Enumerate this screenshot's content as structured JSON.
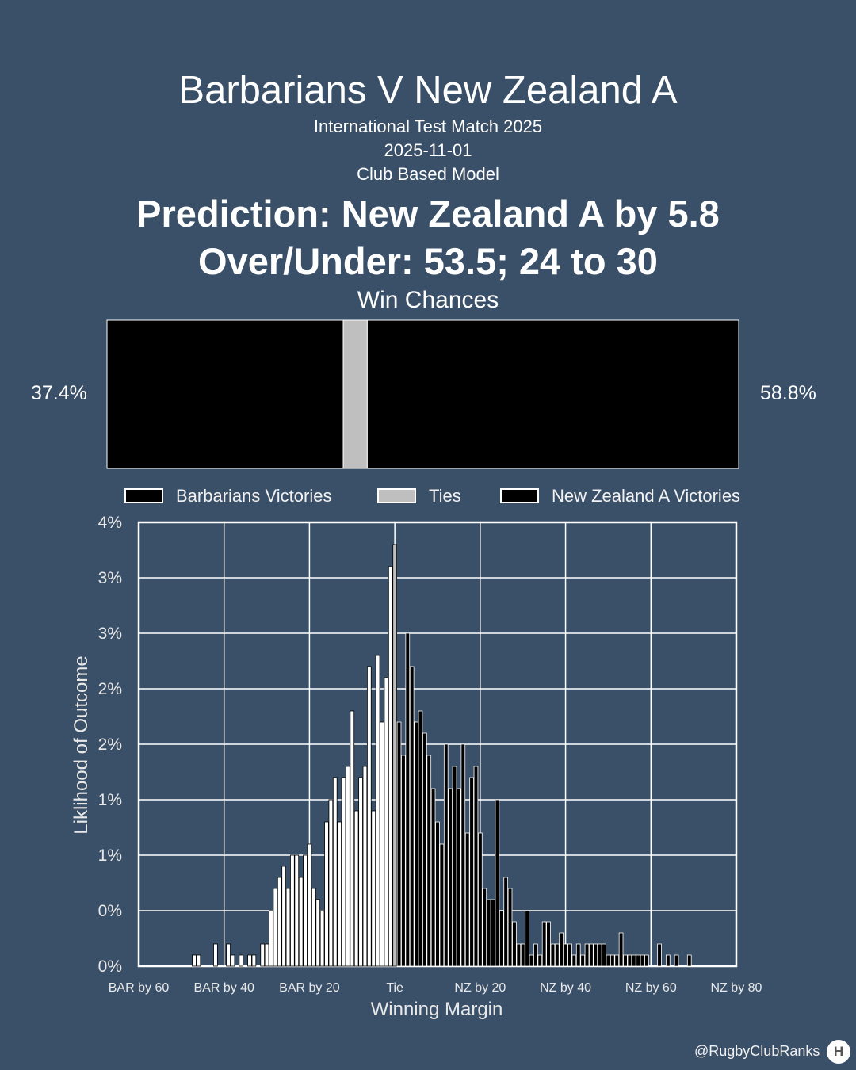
{
  "header": {
    "title": "Barbarians V New Zealand A",
    "competition": "International Test Match 2025",
    "date": "2025-11-01",
    "model": "Club Based Model",
    "prediction": "Prediction: New Zealand A by 5.8",
    "over_under": "Over/Under: 53.5; 24 to 30"
  },
  "win_chances": {
    "label": "Win Chances",
    "left_pct_text": "37.4%",
    "right_pct_text": "58.8%",
    "home_fraction": 0.374,
    "tie_fraction": 0.038,
    "away_fraction": 0.588
  },
  "legend": {
    "home": "Barbarians Victories",
    "tie": "Ties",
    "away": "New Zealand A Victories"
  },
  "colors": {
    "background": "#3a5068",
    "home": "#ffffff",
    "tie": "#bfbfbf",
    "away": "#000000",
    "grid": "#ffffff"
  },
  "footer": {
    "credit": "@RugbyClubRanks",
    "logo": "H"
  },
  "chart_data": {
    "type": "bar",
    "xlabel": "Winning Margin",
    "ylabel": "Liklihood of Outcome",
    "x_ticks": [
      "BAR by 60",
      "BAR by 40",
      "BAR by 20",
      "Tie",
      "NZ by 20",
      "NZ by 40",
      "NZ by 60",
      "NZ by 80"
    ],
    "x_tick_values": [
      -60,
      -40,
      -20,
      0,
      20,
      40,
      60,
      80
    ],
    "y_ticks": [
      "0%",
      "0%",
      "1%",
      "1%",
      "2%",
      "2%",
      "3%",
      "3%",
      "4%"
    ],
    "y_tick_values": [
      0,
      0.5,
      1,
      1.5,
      2,
      2.5,
      3,
      3.5,
      4
    ],
    "xlim": [
      -60,
      80
    ],
    "ylim": [
      0,
      4
    ],
    "grid": true,
    "series": [
      {
        "name": "Barbarians Victories",
        "x": [
          -47,
          -46,
          -42,
          -39,
          -38,
          -36,
          -34,
          -33,
          -31,
          -30,
          -29,
          -28,
          -27,
          -26,
          -25,
          -24,
          -23,
          -22,
          -21,
          -20,
          -19,
          -18,
          -17,
          -16,
          -15,
          -14,
          -13,
          -12,
          -11,
          -10,
          -9,
          -8,
          -7,
          -6,
          -5,
          -4,
          -3,
          -2,
          -1
        ],
        "values": [
          0.1,
          0.1,
          0.2,
          0.2,
          0.1,
          0.1,
          0.1,
          0.1,
          0.2,
          0.2,
          0.5,
          0.7,
          0.8,
          0.9,
          0.7,
          1.0,
          1.0,
          0.8,
          1.0,
          1.1,
          0.7,
          0.6,
          0.5,
          1.3,
          1.5,
          1.7,
          1.3,
          1.7,
          1.8,
          2.3,
          1.4,
          1.7,
          1.8,
          2.7,
          1.4,
          2.8,
          2.2,
          2.6,
          3.6
        ],
        "color": "#ffffff"
      },
      {
        "name": "Ties",
        "x": [
          0
        ],
        "values": [
          3.8
        ],
        "color": "#bfbfbf"
      },
      {
        "name": "New Zealand A Victories",
        "x": [
          1,
          2,
          3,
          4,
          5,
          6,
          7,
          8,
          9,
          10,
          11,
          12,
          13,
          14,
          15,
          16,
          17,
          18,
          19,
          20,
          21,
          22,
          23,
          24,
          25,
          26,
          27,
          28,
          29,
          30,
          31,
          32,
          33,
          34,
          35,
          36,
          37,
          38,
          39,
          40,
          41,
          42,
          43,
          44,
          45,
          46,
          47,
          48,
          49,
          50,
          51,
          52,
          53,
          54,
          55,
          56,
          57,
          58,
          59,
          62,
          64,
          66,
          69
        ],
        "values": [
          2.2,
          1.9,
          3.0,
          2.7,
          2.2,
          2.3,
          2.1,
          1.9,
          1.6,
          1.3,
          1.1,
          2.0,
          1.6,
          1.8,
          1.6,
          2.0,
          1.2,
          1.7,
          1.8,
          1.2,
          0.7,
          0.6,
          0.6,
          1.5,
          0.5,
          0.8,
          0.7,
          0.4,
          0.2,
          0.2,
          0.5,
          0.1,
          0.2,
          0.1,
          0.4,
          0.4,
          0.2,
          0.2,
          0.3,
          0.2,
          0.2,
          0.1,
          0.2,
          0.1,
          0.2,
          0.2,
          0.2,
          0.2,
          0.2,
          0.1,
          0.1,
          0.1,
          0.3,
          0.1,
          0.1,
          0.1,
          0.1,
          0.1,
          0.1,
          0.2,
          0.1,
          0.1,
          0.1
        ],
        "color": "#000000"
      }
    ]
  }
}
